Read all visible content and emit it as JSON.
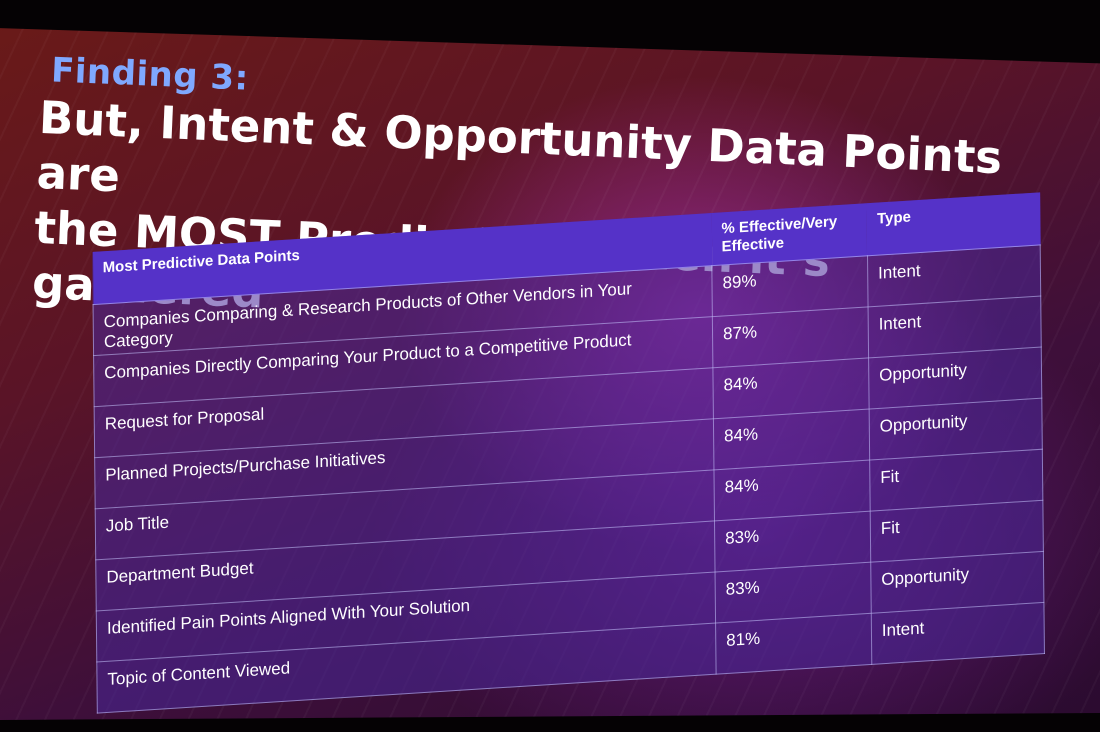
{
  "slide": {
    "finding_label": "Finding 3:",
    "headline_line1": "But, Intent & Opportunity Data Points are",
    "headline_line2": "the MOST Predictive…when it’s gathered"
  },
  "table": {
    "headers": [
      "Most Predictive Data Points",
      "% Effective/Very Effective",
      "Type"
    ],
    "rows": [
      [
        "Companies Comparing & Research Products of Other Vendors in Your Category",
        "89%",
        "Intent"
      ],
      [
        "Companies Directly Comparing Your Product to a Competitive Product",
        "87%",
        "Intent"
      ],
      [
        "Request for Proposal",
        "84%",
        "Opportunity"
      ],
      [
        "Planned Projects/Purchase Initiatives",
        "84%",
        "Opportunity"
      ],
      [
        "Job Title",
        "84%",
        "Fit"
      ],
      [
        "Department Budget",
        "83%",
        "Fit"
      ],
      [
        "Identified Pain Points Aligned With Your Solution",
        "83%",
        "Opportunity"
      ],
      [
        "Topic of Content Viewed",
        "81%",
        "Intent"
      ]
    ]
  }
}
